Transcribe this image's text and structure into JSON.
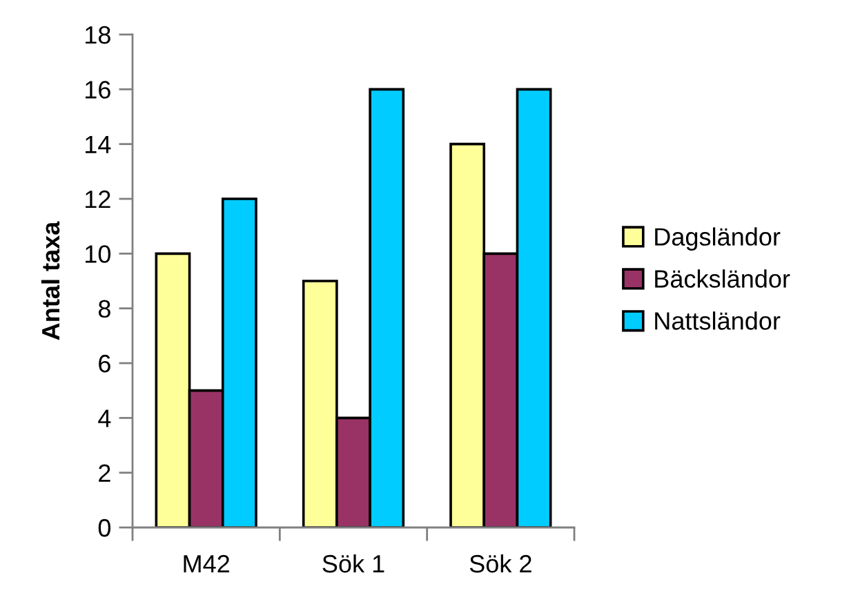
{
  "chart_data": {
    "type": "bar",
    "ylabel": "Antal taxa",
    "categories": [
      "M42",
      "Sök 1",
      "Sök 2"
    ],
    "series": [
      {
        "name": "Dagsländor",
        "color": "#ffff99",
        "values": [
          10,
          9,
          14
        ]
      },
      {
        "name": "Bäcksländor",
        "color": "#993366",
        "values": [
          5,
          4,
          10
        ]
      },
      {
        "name": "Nattsländor",
        "color": "#00ccff",
        "values": [
          12,
          16,
          16
        ]
      }
    ],
    "ylim": [
      0,
      18
    ],
    "yticks": [
      0,
      2,
      4,
      6,
      8,
      10,
      12,
      14,
      16,
      18
    ],
    "grid": false,
    "legend": "right"
  }
}
